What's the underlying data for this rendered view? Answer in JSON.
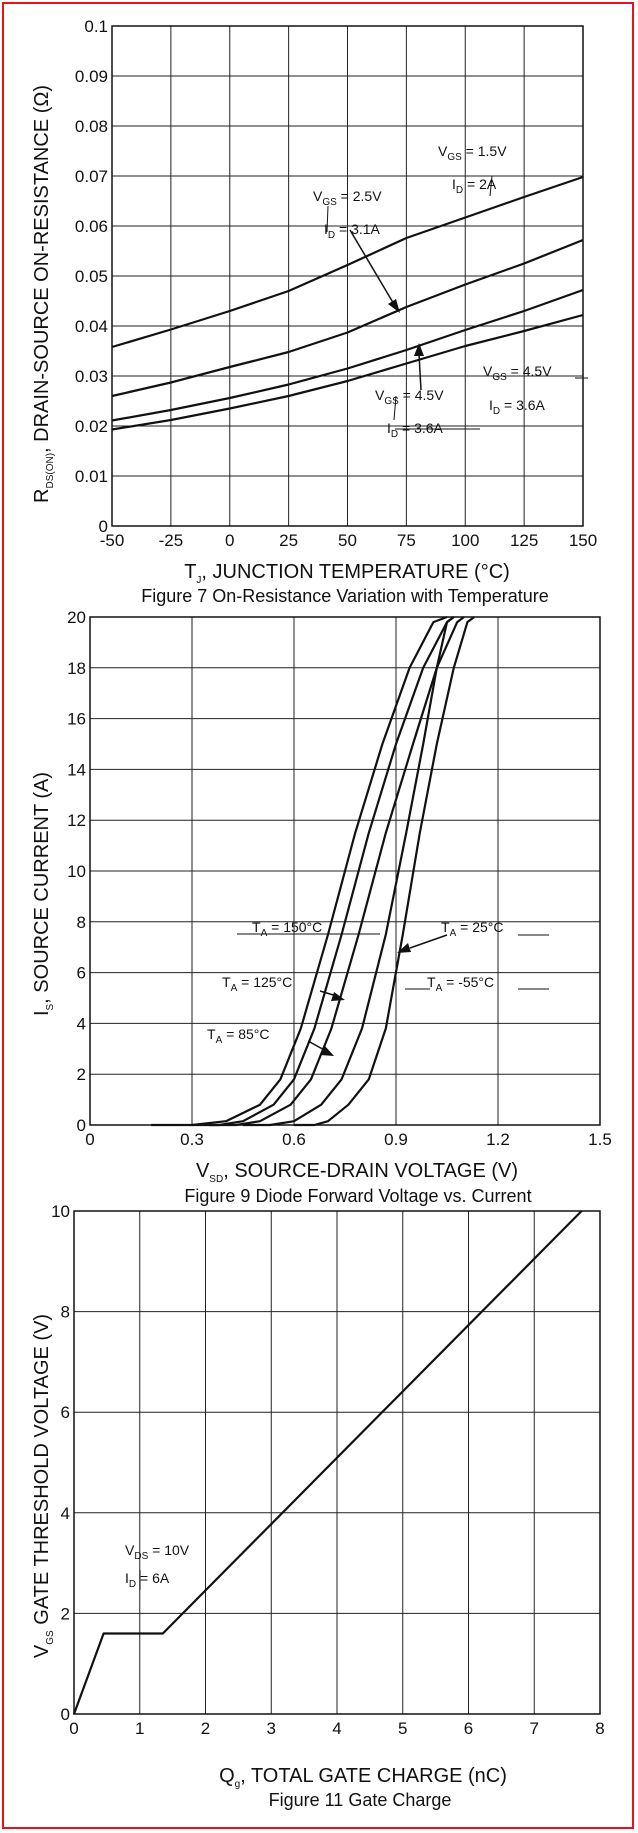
{
  "border_color": "#e8141b",
  "chart_data": [
    {
      "type": "line",
      "title": "Figure 7 On-Resistance Variation with Temperature",
      "xlabel": "T_J, JUNCTION TEMPERATURE (°C)",
      "ylabel": "R_DS(ON), DRAIN-SOURCE ON-RESISTANCE (Ω)",
      "xlim": [
        -50,
        150
      ],
      "ylim": [
        0,
        0.1
      ],
      "xticks": [
        "-50",
        "-25",
        "0",
        "25",
        "50",
        "75",
        "100",
        "125",
        "150"
      ],
      "yticks": [
        "0",
        "0.01",
        "0.02",
        "0.03",
        "0.04",
        "0.05",
        "0.06",
        "0.07",
        "0.08",
        "0.09",
        "0.1"
      ],
      "grid": true,
      "series": [
        {
          "x": [
            -50,
            -25,
            0,
            25,
            50,
            75,
            100,
            125,
            150
          ],
          "y": [
            0.0358,
            0.0393,
            0.043,
            0.047,
            0.0522,
            0.0576,
            0.0617,
            0.0658,
            0.0698
          ]
        },
        {
          "x": [
            -50,
            -25,
            0,
            25,
            50,
            75,
            100,
            125,
            150
          ],
          "y": [
            0.026,
            0.0287,
            0.0318,
            0.0348,
            0.0387,
            0.0438,
            0.0483,
            0.0525,
            0.0572
          ]
        },
        {
          "x": [
            -50,
            -25,
            0,
            25,
            50,
            75,
            100,
            125,
            150
          ],
          "y": [
            0.0211,
            0.0232,
            0.0256,
            0.0283,
            0.0315,
            0.0352,
            0.0392,
            0.043,
            0.0472
          ]
        },
        {
          "x": [
            -50,
            -25,
            0,
            25,
            50,
            75,
            100,
            125,
            150
          ],
          "y": [
            0.0193,
            0.0212,
            0.0235,
            0.026,
            0.029,
            0.0325,
            0.036,
            0.039,
            0.0422
          ]
        }
      ],
      "annotations": [
        {
          "main": "V",
          "sub": "GS",
          "rest": " = 1.5V"
        },
        {
          "main": "I",
          "sub": "D",
          "rest": " = 2A"
        },
        {
          "main": "V",
          "sub": "GS",
          "rest": " = 2.5V"
        },
        {
          "main": "I",
          "sub": "D",
          "rest": " = 3.1A"
        },
        {
          "main": "V",
          "sub": "GS",
          "rest": " = 4.5V"
        },
        {
          "main": "I",
          "sub": "D",
          "rest": " = 3.6A"
        },
        {
          "main": "V",
          "sub": "GS",
          "rest": " = 4.5V"
        },
        {
          "main": "I",
          "sub": "D",
          "rest": " = 3.6A"
        }
      ]
    },
    {
      "type": "line",
      "title": "Figure 9 Diode Forward Voltage vs. Current",
      "xlabel": "V_SD, SOURCE-DRAIN VOLTAGE (V)",
      "ylabel": "I_S, SOURCE CURRENT (A)",
      "xlim": [
        0,
        1.5
      ],
      "ylim": [
        0,
        20
      ],
      "xticks": [
        "0",
        "0.3",
        "0.6",
        "0.9",
        "1.2",
        "1.5"
      ],
      "yticks": [
        "0",
        "2",
        "4",
        "6",
        "8",
        "10",
        "12",
        "14",
        "16",
        "18",
        "20"
      ],
      "grid": true,
      "series": [
        {
          "x": [
            0.18,
            0.3,
            0.4,
            0.5,
            0.56,
            0.62,
            0.7,
            0.78,
            0.86,
            0.94,
            1.01,
            1.05
          ],
          "y": [
            0,
            0,
            0.15,
            0.8,
            1.8,
            3.8,
            7.5,
            11.5,
            15.0,
            18.0,
            19.8,
            20
          ]
        },
        {
          "x": [
            0.3,
            0.38,
            0.45,
            0.54,
            0.6,
            0.66,
            0.74,
            0.82,
            0.9,
            0.98,
            1.05,
            1.07
          ],
          "y": [
            0,
            0,
            0.15,
            0.8,
            1.8,
            3.8,
            7.5,
            11.5,
            15.0,
            18.0,
            19.8,
            20
          ]
        },
        {
          "x": [
            0.35,
            0.43,
            0.5,
            0.59,
            0.65,
            0.71,
            0.79,
            0.87,
            0.95,
            1.02,
            1.08,
            1.1
          ],
          "y": [
            0,
            0,
            0.15,
            0.8,
            1.8,
            3.8,
            7.5,
            11.5,
            15.0,
            18.0,
            19.8,
            20
          ]
        },
        {
          "x": [
            0.45,
            0.53,
            0.6,
            0.68,
            0.74,
            0.8,
            0.87,
            0.93,
            0.98,
            1.02,
            1.05,
            1.07
          ],
          "y": [
            0,
            0,
            0.15,
            0.8,
            1.8,
            3.8,
            7.5,
            11.5,
            15.0,
            18.0,
            19.8,
            20
          ]
        },
        {
          "x": [
            0.6,
            0.66,
            0.7,
            0.76,
            0.82,
            0.87,
            0.92,
            0.97,
            1.02,
            1.07,
            1.11,
            1.13
          ],
          "y": [
            0,
            0,
            0.15,
            0.8,
            1.8,
            3.8,
            7.5,
            11.5,
            15.0,
            18.0,
            19.8,
            20
          ]
        }
      ],
      "annotations": [
        {
          "main": "T",
          "sub": "A",
          "rest": " = 150°C"
        },
        {
          "main": "T",
          "sub": "A",
          "rest": " = 125°C"
        },
        {
          "main": "T",
          "sub": "A",
          "rest": " = 85°C"
        },
        {
          "main": "T",
          "sub": "A",
          "rest": " = 25°C"
        },
        {
          "main": "T",
          "sub": "A",
          "rest": " = -55°C"
        }
      ]
    },
    {
      "type": "line",
      "title": "Figure 11 Gate Charge",
      "xlabel": "Q_g, TOTAL GATE CHARGE (nC)",
      "ylabel": "V_GS GATE THRESHOLD VOLTAGE (V)",
      "xlim": [
        0,
        8
      ],
      "ylim": [
        0,
        10
      ],
      "xticks": [
        "0",
        "1",
        "2",
        "3",
        "4",
        "5",
        "6",
        "7",
        "8"
      ],
      "yticks": [
        "0",
        "2",
        "4",
        "6",
        "8",
        "10"
      ],
      "grid": true,
      "series": [
        {
          "x": [
            0,
            0.45,
            1.35,
            7.72
          ],
          "y": [
            0,
            1.6,
            1.6,
            10
          ]
        }
      ],
      "annotations": [
        {
          "main": "V",
          "sub": "DS",
          "rest": " = 10V"
        },
        {
          "main": "I",
          "sub": "D",
          "rest": " = 6A"
        }
      ]
    }
  ]
}
